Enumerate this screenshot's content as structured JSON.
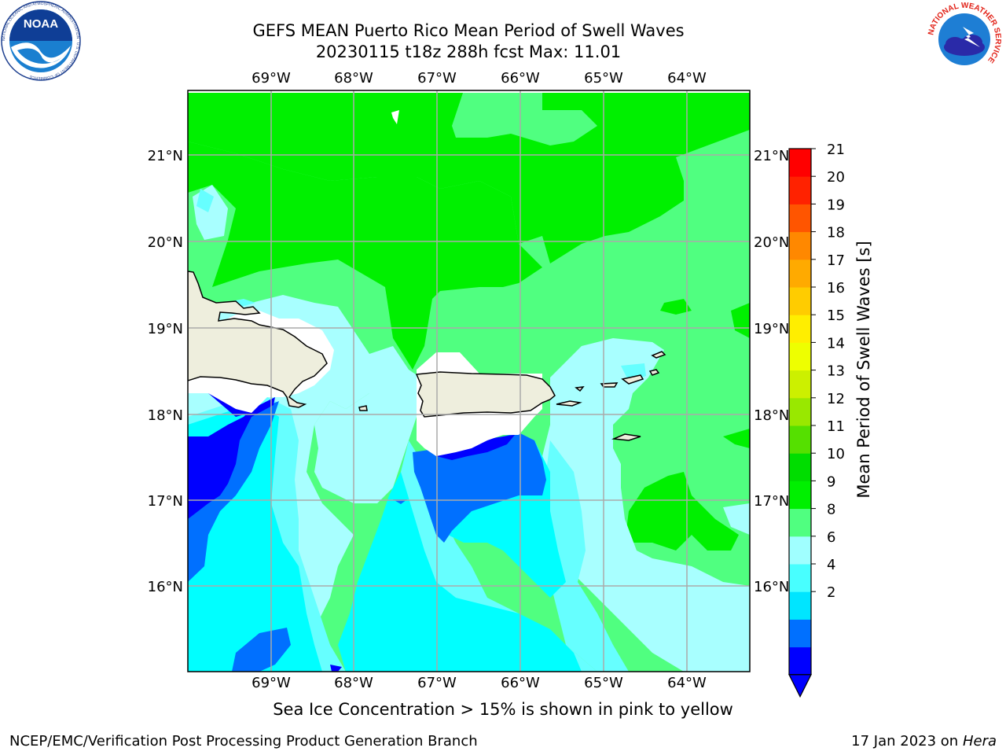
{
  "title": {
    "line1": "GEFS MEAN Puerto Rico Mean Period of Swell Waves",
    "line2": "20230115 t18z 288h fcst   Max: 11.01"
  },
  "axes": {
    "lon_labels": [
      "69°W",
      "68°W",
      "67°W",
      "66°W",
      "65°W",
      "64°W"
    ],
    "lat_labels": [
      "21°N",
      "20°N",
      "19°N",
      "18°N",
      "17°N",
      "16°N"
    ]
  },
  "colorbar": {
    "label": "Mean Period of Swell Waves [s]",
    "ticks": [
      "21",
      "20",
      "19",
      "18",
      "17",
      "16",
      "15",
      "14",
      "13",
      "12",
      "11",
      "10",
      "9",
      "8",
      "6",
      "4",
      "2"
    ],
    "colors": [
      "#0000ff",
      "#0070ff",
      "#00e5ff",
      "#48ffff",
      "#a0ffff",
      "#50ff80",
      "#00f000",
      "#00dd00",
      "#55e000",
      "#99e800",
      "#ccf000",
      "#eeff00",
      "#ffee00",
      "#ffcc00",
      "#ffaa00",
      "#ff8800",
      "#ff5500",
      "#ff2200",
      "#ff0000"
    ],
    "extend_color": "#0000ff"
  },
  "note": "Sea Ice Concentration > 15% is shown in pink to yellow",
  "footer": {
    "left": "NCEP/EMC/Verification Post Processing Product Generation Branch",
    "date": "17 Jan 2023 on ",
    "machine": "Hera"
  },
  "logos": {
    "noaa_text": "NOAA",
    "noaa_ring": "NATIONAL OCEANIC AND ATMOSPHERIC ADMINISTRATION · U.S. DEPARTMENT OF COMMERCE",
    "nws_ring": "NATIONAL WEATHER SERVICE"
  },
  "map_colors": {
    "land": "#eeeedd",
    "period_4_6": "#00ffff",
    "period_6_8": "#66ffff",
    "period_8_9": "#a8ffff",
    "period_9_10": "#50ff80",
    "period_10_11": "#00f000",
    "period_2_4": "#0070ff",
    "period_lt_2": "#0000ff",
    "grid": "#aaaaaa"
  }
}
